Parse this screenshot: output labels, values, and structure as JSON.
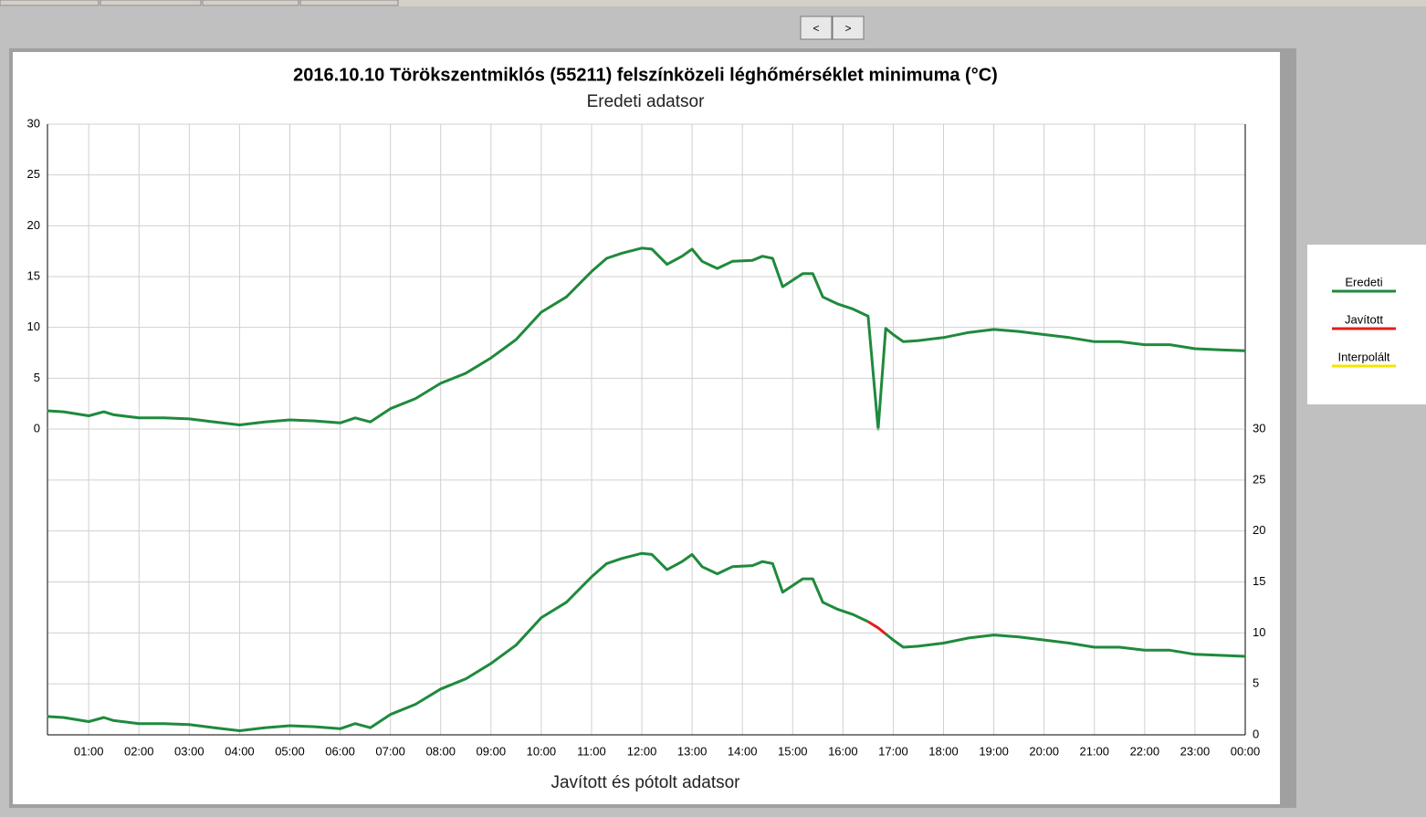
{
  "buttons": [
    "<",
    ">"
  ],
  "chart_data": [
    {
      "type": "line",
      "title": "2016.10.10 Törökszentmiklós (55211) felszínközeli léghőmérséklet minimuma (°C)",
      "subtitle": "Eredeti adatsor",
      "x": [
        0.17,
        0.5,
        1.0,
        1.3,
        1.5,
        2.0,
        2.5,
        3.0,
        3.5,
        4.0,
        4.5,
        5.0,
        5.5,
        6.0,
        6.3,
        6.6,
        7.0,
        7.5,
        8.0,
        8.5,
        9.0,
        9.5,
        10.0,
        10.5,
        11.0,
        11.3,
        11.6,
        12.0,
        12.2,
        12.5,
        12.8,
        13.0,
        13.2,
        13.5,
        13.8,
        14.2,
        14.4,
        14.6,
        14.8,
        15.2,
        15.4,
        15.6,
        15.9,
        16.2,
        16.5,
        16.7,
        16.85,
        17.0,
        17.2,
        17.5,
        18.0,
        18.5,
        19.0,
        19.5,
        20.0,
        20.5,
        21.0,
        21.5,
        22.0,
        22.5,
        23.0,
        23.5,
        24.0
      ],
      "xlim": [
        0.18,
        24
      ],
      "ylim": [
        0,
        30
      ],
      "yticks": [
        0,
        5,
        10,
        15,
        20,
        25,
        30
      ],
      "grid": true,
      "series": [
        {
          "color": "#1f8a3c",
          "values": [
            1.8,
            1.7,
            1.3,
            1.7,
            1.4,
            1.1,
            1.1,
            1.0,
            0.7,
            0.4,
            0.7,
            0.9,
            0.8,
            0.6,
            1.1,
            0.7,
            2.0,
            3.0,
            4.5,
            5.5,
            7.0,
            8.8,
            11.5,
            13.0,
            15.5,
            16.8,
            17.3,
            17.8,
            17.7,
            16.2,
            17.0,
            17.7,
            16.5,
            15.8,
            16.5,
            16.6,
            17.0,
            16.8,
            14.0,
            15.3,
            15.3,
            13.0,
            12.3,
            11.8,
            11.1,
            0,
            9.9,
            9.3,
            8.6,
            8.7,
            9.0,
            9.5,
            9.8,
            9.6,
            9.3,
            9.0,
            8.6,
            8.6,
            8.3,
            8.3,
            7.9,
            7.8,
            7.7
          ]
        }
      ]
    },
    {
      "type": "line",
      "xlabel": "Javított és pótolt adatsor",
      "x": [
        0.17,
        0.5,
        1.0,
        1.3,
        1.5,
        2.0,
        2.5,
        3.0,
        3.5,
        4.0,
        4.5,
        5.0,
        5.5,
        6.0,
        6.3,
        6.6,
        7.0,
        7.5,
        8.0,
        8.5,
        9.0,
        9.5,
        10.0,
        10.5,
        11.0,
        11.3,
        11.6,
        12.0,
        12.2,
        12.5,
        12.8,
        13.0,
        13.2,
        13.5,
        13.8,
        14.2,
        14.4,
        14.6,
        14.8,
        15.2,
        15.4,
        15.6,
        15.9,
        16.2,
        16.5,
        16.7,
        16.85,
        17.0,
        17.2,
        17.5,
        18.0,
        18.5,
        19.0,
        19.5,
        20.0,
        20.5,
        21.0,
        21.5,
        22.0,
        22.5,
        23.0,
        23.5,
        24.0
      ],
      "xlim": [
        0.18,
        24
      ],
      "xticks": [
        {
          "value": 1,
          "label": "01:00"
        },
        {
          "value": 2,
          "label": "02:00"
        },
        {
          "value": 3,
          "label": "03:00"
        },
        {
          "value": 4,
          "label": "04:00"
        },
        {
          "value": 5,
          "label": "05:00"
        },
        {
          "value": 6,
          "label": "06:00"
        },
        {
          "value": 7,
          "label": "07:00"
        },
        {
          "value": 8,
          "label": "08:00"
        },
        {
          "value": 9,
          "label": "09:00"
        },
        {
          "value": 10,
          "label": "10:00"
        },
        {
          "value": 11,
          "label": "11:00"
        },
        {
          "value": 12,
          "label": "12:00"
        },
        {
          "value": 13,
          "label": "13:00"
        },
        {
          "value": 14,
          "label": "14:00"
        },
        {
          "value": 15,
          "label": "15:00"
        },
        {
          "value": 16,
          "label": "16:00"
        },
        {
          "value": 17,
          "label": "17:00"
        },
        {
          "value": 18,
          "label": "18:00"
        },
        {
          "value": 19,
          "label": "19:00"
        },
        {
          "value": 20,
          "label": "20:00"
        },
        {
          "value": 21,
          "label": "21:00"
        },
        {
          "value": 22,
          "label": "22:00"
        },
        {
          "value": 23,
          "label": "23:00"
        },
        {
          "value": 24,
          "label": "00:00"
        }
      ],
      "ylim": [
        0,
        30
      ],
      "yticks": [
        0,
        5,
        10,
        15,
        20,
        25,
        30
      ],
      "grid": true,
      "series": [
        {
          "name": "Eredeti",
          "color": "#1f8a3c",
          "values": [
            1.8,
            1.7,
            1.3,
            1.7,
            1.4,
            1.1,
            1.1,
            1.0,
            0.7,
            0.4,
            0.7,
            0.9,
            0.8,
            0.6,
            1.1,
            0.7,
            2.0,
            3.0,
            4.5,
            5.5,
            7.0,
            8.8,
            11.5,
            13.0,
            15.5,
            16.8,
            17.3,
            17.8,
            17.7,
            16.2,
            17.0,
            17.7,
            16.5,
            15.8,
            16.5,
            16.6,
            17.0,
            16.8,
            14.0,
            15.3,
            15.3,
            13.0,
            12.3,
            11.8,
            11.1,
            null,
            9.9,
            9.3,
            8.6,
            8.7,
            9.0,
            9.5,
            9.8,
            9.6,
            9.3,
            9.0,
            8.6,
            8.6,
            8.3,
            8.3,
            7.9,
            7.8,
            7.7
          ]
        },
        {
          "name": "Javított",
          "color": "#e0201a",
          "values": [
            null,
            null,
            null,
            null,
            null,
            null,
            null,
            null,
            null,
            null,
            null,
            null,
            null,
            null,
            null,
            null,
            null,
            null,
            null,
            null,
            null,
            null,
            null,
            null,
            null,
            null,
            null,
            null,
            null,
            null,
            null,
            null,
            null,
            null,
            null,
            null,
            null,
            null,
            null,
            null,
            null,
            null,
            null,
            null,
            11.1,
            10.5,
            9.9,
            null,
            null,
            null,
            null,
            null,
            null,
            null,
            null,
            null,
            null,
            null,
            null,
            null,
            null,
            null,
            null
          ]
        },
        {
          "name": "Interpolált",
          "color": "#f2e600",
          "values": [
            null,
            null,
            null,
            null,
            null,
            null,
            null,
            null,
            null,
            null,
            null,
            null,
            null,
            null,
            null,
            null,
            null,
            null,
            null,
            null,
            null,
            null,
            null,
            null,
            null,
            null,
            null,
            null,
            null,
            null,
            null,
            null,
            null,
            null,
            null,
            null,
            null,
            null,
            null,
            null,
            null,
            null,
            null,
            null,
            null,
            null,
            null,
            null,
            null,
            null,
            null,
            null,
            null,
            null,
            null,
            null,
            null,
            null,
            null,
            null,
            null,
            null,
            null
          ]
        }
      ]
    }
  ]
}
